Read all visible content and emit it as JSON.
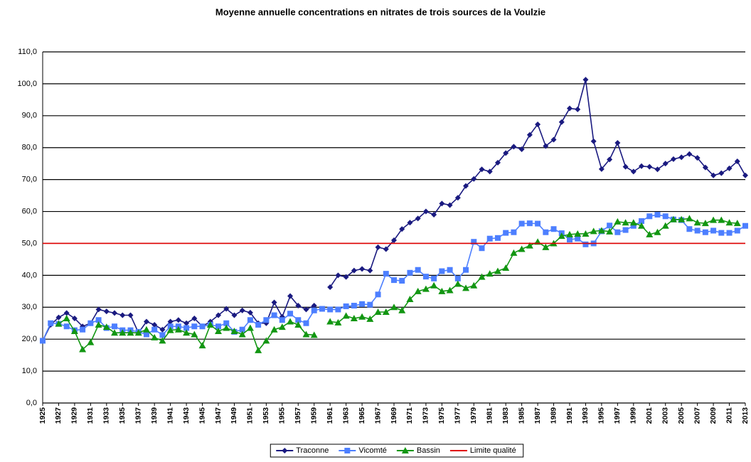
{
  "chart_data": {
    "type": "line",
    "title": "Moyenne annuelle concentrations en nitrates de trois sources de la Voulzie",
    "x": [
      1925,
      1926,
      1927,
      1928,
      1929,
      1930,
      1931,
      1932,
      1933,
      1934,
      1935,
      1936,
      1937,
      1938,
      1939,
      1940,
      1941,
      1942,
      1943,
      1944,
      1945,
      1946,
      1947,
      1948,
      1949,
      1950,
      1951,
      1952,
      1953,
      1954,
      1955,
      1956,
      1957,
      1958,
      1959,
      1960,
      1961,
      1962,
      1963,
      1964,
      1965,
      1966,
      1967,
      1968,
      1969,
      1970,
      1971,
      1972,
      1973,
      1974,
      1975,
      1976,
      1977,
      1978,
      1979,
      1980,
      1981,
      1982,
      1983,
      1984,
      1985,
      1986,
      1987,
      1988,
      1989,
      1990,
      1991,
      1992,
      1993,
      1994,
      1995,
      1996,
      1997,
      1998,
      1999,
      2000,
      2001,
      2002,
      2003,
      2004,
      2005,
      2006,
      2007,
      2008,
      2009,
      2010,
      2011,
      2012,
      2013
    ],
    "xlim": [
      1925,
      2013
    ],
    "xticks": [
      1925,
      1927,
      1929,
      1931,
      1933,
      1935,
      1937,
      1939,
      1941,
      1943,
      1945,
      1947,
      1949,
      1951,
      1953,
      1955,
      1957,
      1959,
      1961,
      1963,
      1965,
      1967,
      1969,
      1971,
      1973,
      1975,
      1977,
      1979,
      1981,
      1983,
      1985,
      1987,
      1989,
      1991,
      1993,
      1995,
      1997,
      1999,
      2001,
      2003,
      2005,
      2007,
      2009,
      2011,
      2013
    ],
    "ylim": [
      0,
      110
    ],
    "yticks": [
      {
        "value": 0,
        "label": "0,0"
      },
      {
        "value": 10,
        "label": "10,0"
      },
      {
        "value": 20,
        "label": "20,0"
      },
      {
        "value": 30,
        "label": "30,0"
      },
      {
        "value": 40,
        "label": "40,0"
      },
      {
        "value": 50,
        "label": "50,0"
      },
      {
        "value": 60,
        "label": "60,0"
      },
      {
        "value": 70,
        "label": "70,0"
      },
      {
        "value": 80,
        "label": "80,0"
      },
      {
        "value": 90,
        "label": "90,0"
      },
      {
        "value": 100,
        "label": "100,0"
      },
      {
        "value": 110,
        "label": "110,0"
      }
    ],
    "grid": true,
    "legend": "bottom",
    "series": [
      {
        "name": "Traconne",
        "color": "#1a1a80",
        "marker": "diamond",
        "values": [
          19.5,
          24.5,
          26.8,
          28.2,
          26.5,
          24,
          25,
          29.3,
          28.7,
          28.2,
          27.5,
          27.5,
          22,
          25.5,
          24.5,
          23,
          25.5,
          26,
          25,
          26.5,
          24,
          25.5,
          27.5,
          29.5,
          27.5,
          29,
          28.3,
          25,
          25,
          31.5,
          27,
          33.5,
          30.5,
          29.3,
          30.5,
          null,
          36.3,
          40,
          39.5,
          41.5,
          42,
          41.5,
          48.8,
          48.2,
          51,
          54.5,
          56.5,
          57.8,
          60,
          59,
          62.5,
          62,
          64.3,
          68,
          70.2,
          73.2,
          72.5,
          75.3,
          78.3,
          80.3,
          79.5,
          84,
          87.3,
          80.5,
          82.5,
          88,
          92.3,
          92,
          101.3,
          82,
          73.3,
          76.3,
          81.5,
          74,
          72.5,
          74.2,
          74,
          73.2,
          75,
          76.4,
          77,
          78,
          76.8,
          73.8,
          71.3,
          72,
          73.5,
          75.7,
          71.3
        ]
      },
      {
        "name": "Vicomté",
        "color": "#4d7fff",
        "marker": "square",
        "values": [
          19.5,
          25,
          24.8,
          24,
          22.8,
          23,
          25,
          26,
          23.5,
          24,
          22.8,
          22.8,
          22.3,
          21.5,
          23,
          21.3,
          24,
          24,
          23.5,
          24,
          24,
          24.5,
          24,
          25,
          22.3,
          23,
          26,
          24.5,
          26,
          27.5,
          26,
          28,
          26,
          25,
          29,
          29.5,
          29.3,
          29.3,
          30.3,
          30.5,
          31,
          30.8,
          34,
          40.5,
          38.5,
          38.3,
          40.8,
          41.7,
          39.6,
          39,
          41.3,
          41.7,
          39,
          41.7,
          50.5,
          48.5,
          51.5,
          51.7,
          53.3,
          53.5,
          56.2,
          56.3,
          56.2,
          53.5,
          54.5,
          53.2,
          51.2,
          51.5,
          49.7,
          50,
          53.8,
          55.6,
          53.5,
          54.2,
          55.5,
          57,
          58.5,
          59,
          58.5,
          57.5,
          57.3,
          54.5,
          54,
          53.5,
          54,
          53.3,
          53.3,
          54,
          55.5
        ]
      },
      {
        "name": "Bassin",
        "color": "#129612",
        "marker": "triangle",
        "values": [
          null,
          null,
          24.8,
          26.5,
          22.5,
          16.8,
          19,
          24.5,
          23.8,
          22,
          22,
          22,
          22,
          23,
          20.5,
          19.5,
          22.8,
          23,
          22,
          21.5,
          18,
          24.5,
          22.5,
          23.5,
          22.5,
          21.5,
          23.5,
          16.5,
          19.5,
          23,
          23.8,
          25.5,
          24.5,
          21.5,
          21.3,
          null,
          25.5,
          25.2,
          27.3,
          26.5,
          27,
          26.3,
          28.5,
          28.5,
          30,
          29,
          32.5,
          35,
          35.7,
          36.8,
          35,
          35.3,
          37.3,
          36,
          36.8,
          39.5,
          40.5,
          41.3,
          42.3,
          47,
          48.2,
          49.3,
          50.5,
          48.8,
          50,
          52.3,
          52.8,
          53,
          53,
          53.8,
          54,
          53.7,
          56.8,
          56.5,
          56.5,
          55.5,
          52.8,
          53.5,
          55.5,
          57.5,
          57.5,
          57.8,
          56.5,
          56.3,
          57.3,
          57.3,
          56.5,
          56.3,
          null
        ]
      },
      {
        "name": "Limite qualité",
        "color": "#e00000",
        "x": [
          1925,
          2013
        ],
        "values": [
          50,
          50
        ]
      }
    ]
  }
}
